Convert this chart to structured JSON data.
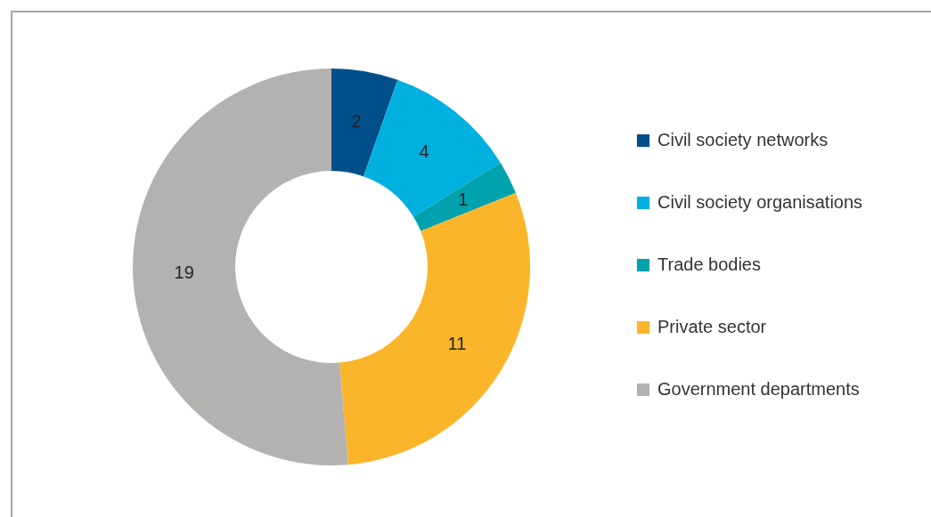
{
  "chart_data": {
    "type": "donut",
    "categories": [
      "Civil society networks",
      "Civil society organisations",
      "Trade bodies",
      "Private sector",
      "Government departments"
    ],
    "values": [
      2,
      4,
      1,
      11,
      19
    ],
    "colors": [
      "#004f8b",
      "#00b0df",
      "#00a3ad",
      "#fbb52a",
      "#b3b2b1"
    ],
    "data_labels": true,
    "legend": "right"
  }
}
